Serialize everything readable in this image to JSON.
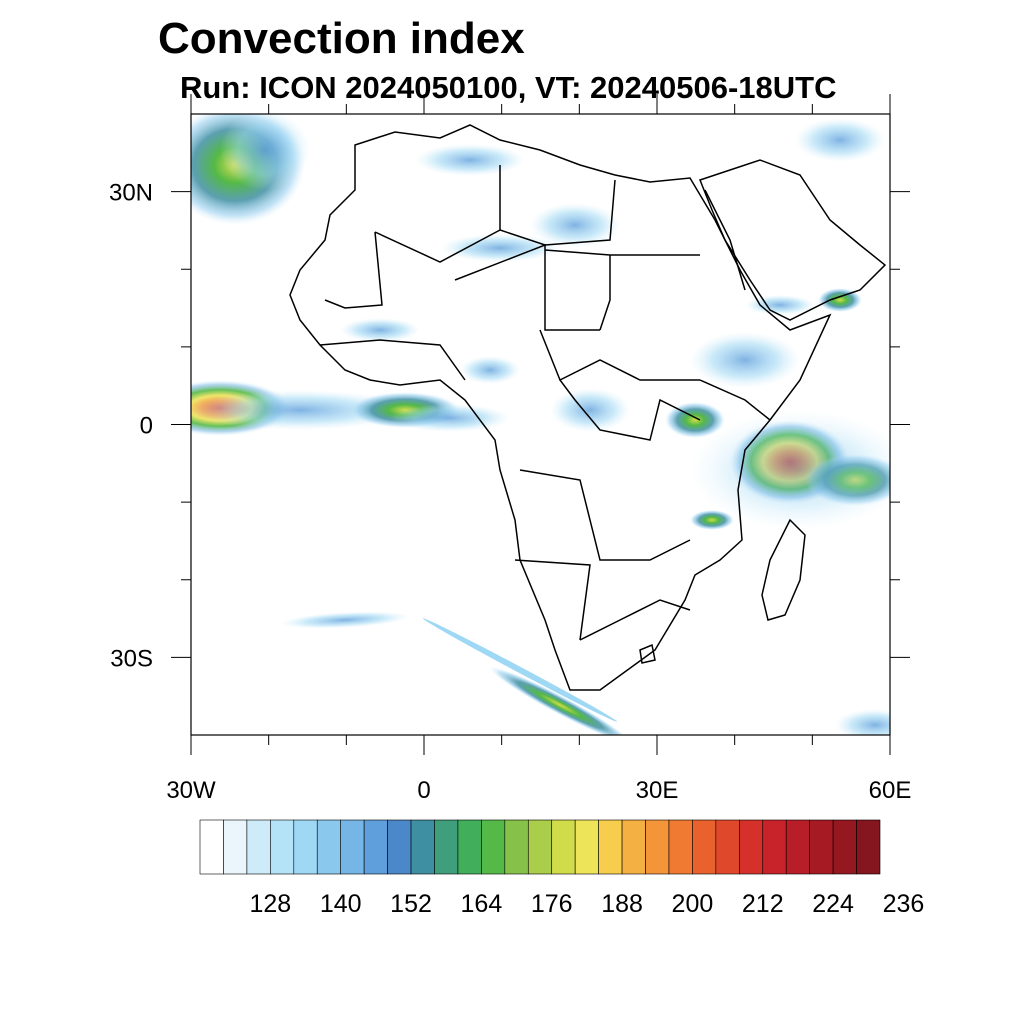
{
  "title": "Convection index",
  "subtitle": "Run: ICON 2024050100,  VT: 20240506-18UTC",
  "map": {
    "projection": "cylindrical equidistant",
    "lon_range": [
      -30,
      60
    ],
    "lat_range": [
      -40,
      40
    ],
    "x_ticks": [
      {
        "value": -30,
        "label": "30W"
      },
      {
        "value": 0,
        "label": "0"
      },
      {
        "value": 30,
        "label": "30E"
      },
      {
        "value": 60,
        "label": "60E"
      }
    ],
    "y_ticks": [
      {
        "value": 30,
        "label": "30N"
      },
      {
        "value": 0,
        "label": "0"
      },
      {
        "value": -30,
        "label": "30S"
      }
    ]
  },
  "colorbar": {
    "colors": [
      "#ffffff",
      "#eaf6fc",
      "#cdebf8",
      "#b4e2f6",
      "#9ed8f4",
      "#8ac8ee",
      "#75b6e6",
      "#5f9fdb",
      "#4b88c9",
      "#3f8fa2",
      "#3f9e7c",
      "#40ae5a",
      "#55b947",
      "#86c249",
      "#aacd4a",
      "#d0dc4a",
      "#eee45a",
      "#f7cd4e",
      "#f4b043",
      "#f4953a",
      "#f07a32",
      "#e9622d",
      "#e0482c",
      "#d6302b",
      "#c8232a",
      "#b81e27",
      "#a61a24",
      "#951821",
      "#85151e"
    ],
    "labels": [
      "128",
      "140",
      "152",
      "164",
      "176",
      "188",
      "200",
      "212",
      "224",
      "236"
    ]
  },
  "convective_cells": [
    {
      "name": "north-atlantic-west",
      "lon": -25,
      "lat": 34,
      "value": 176
    },
    {
      "name": "gulf-of-guinea-west",
      "lon": -28,
      "lat": 2,
      "value": 200
    },
    {
      "name": "gulf-of-guinea-central",
      "lon": -2,
      "lat": 2,
      "value": 176
    },
    {
      "name": "indian-ocean-east-africa",
      "lon": 46,
      "lat": -5,
      "value": 212
    },
    {
      "name": "south-atlantic-band",
      "lon": 15,
      "lat": -36,
      "value": 176
    },
    {
      "name": "arabia-coast",
      "lon": 51,
      "lat": 17,
      "value": 188
    }
  ]
}
